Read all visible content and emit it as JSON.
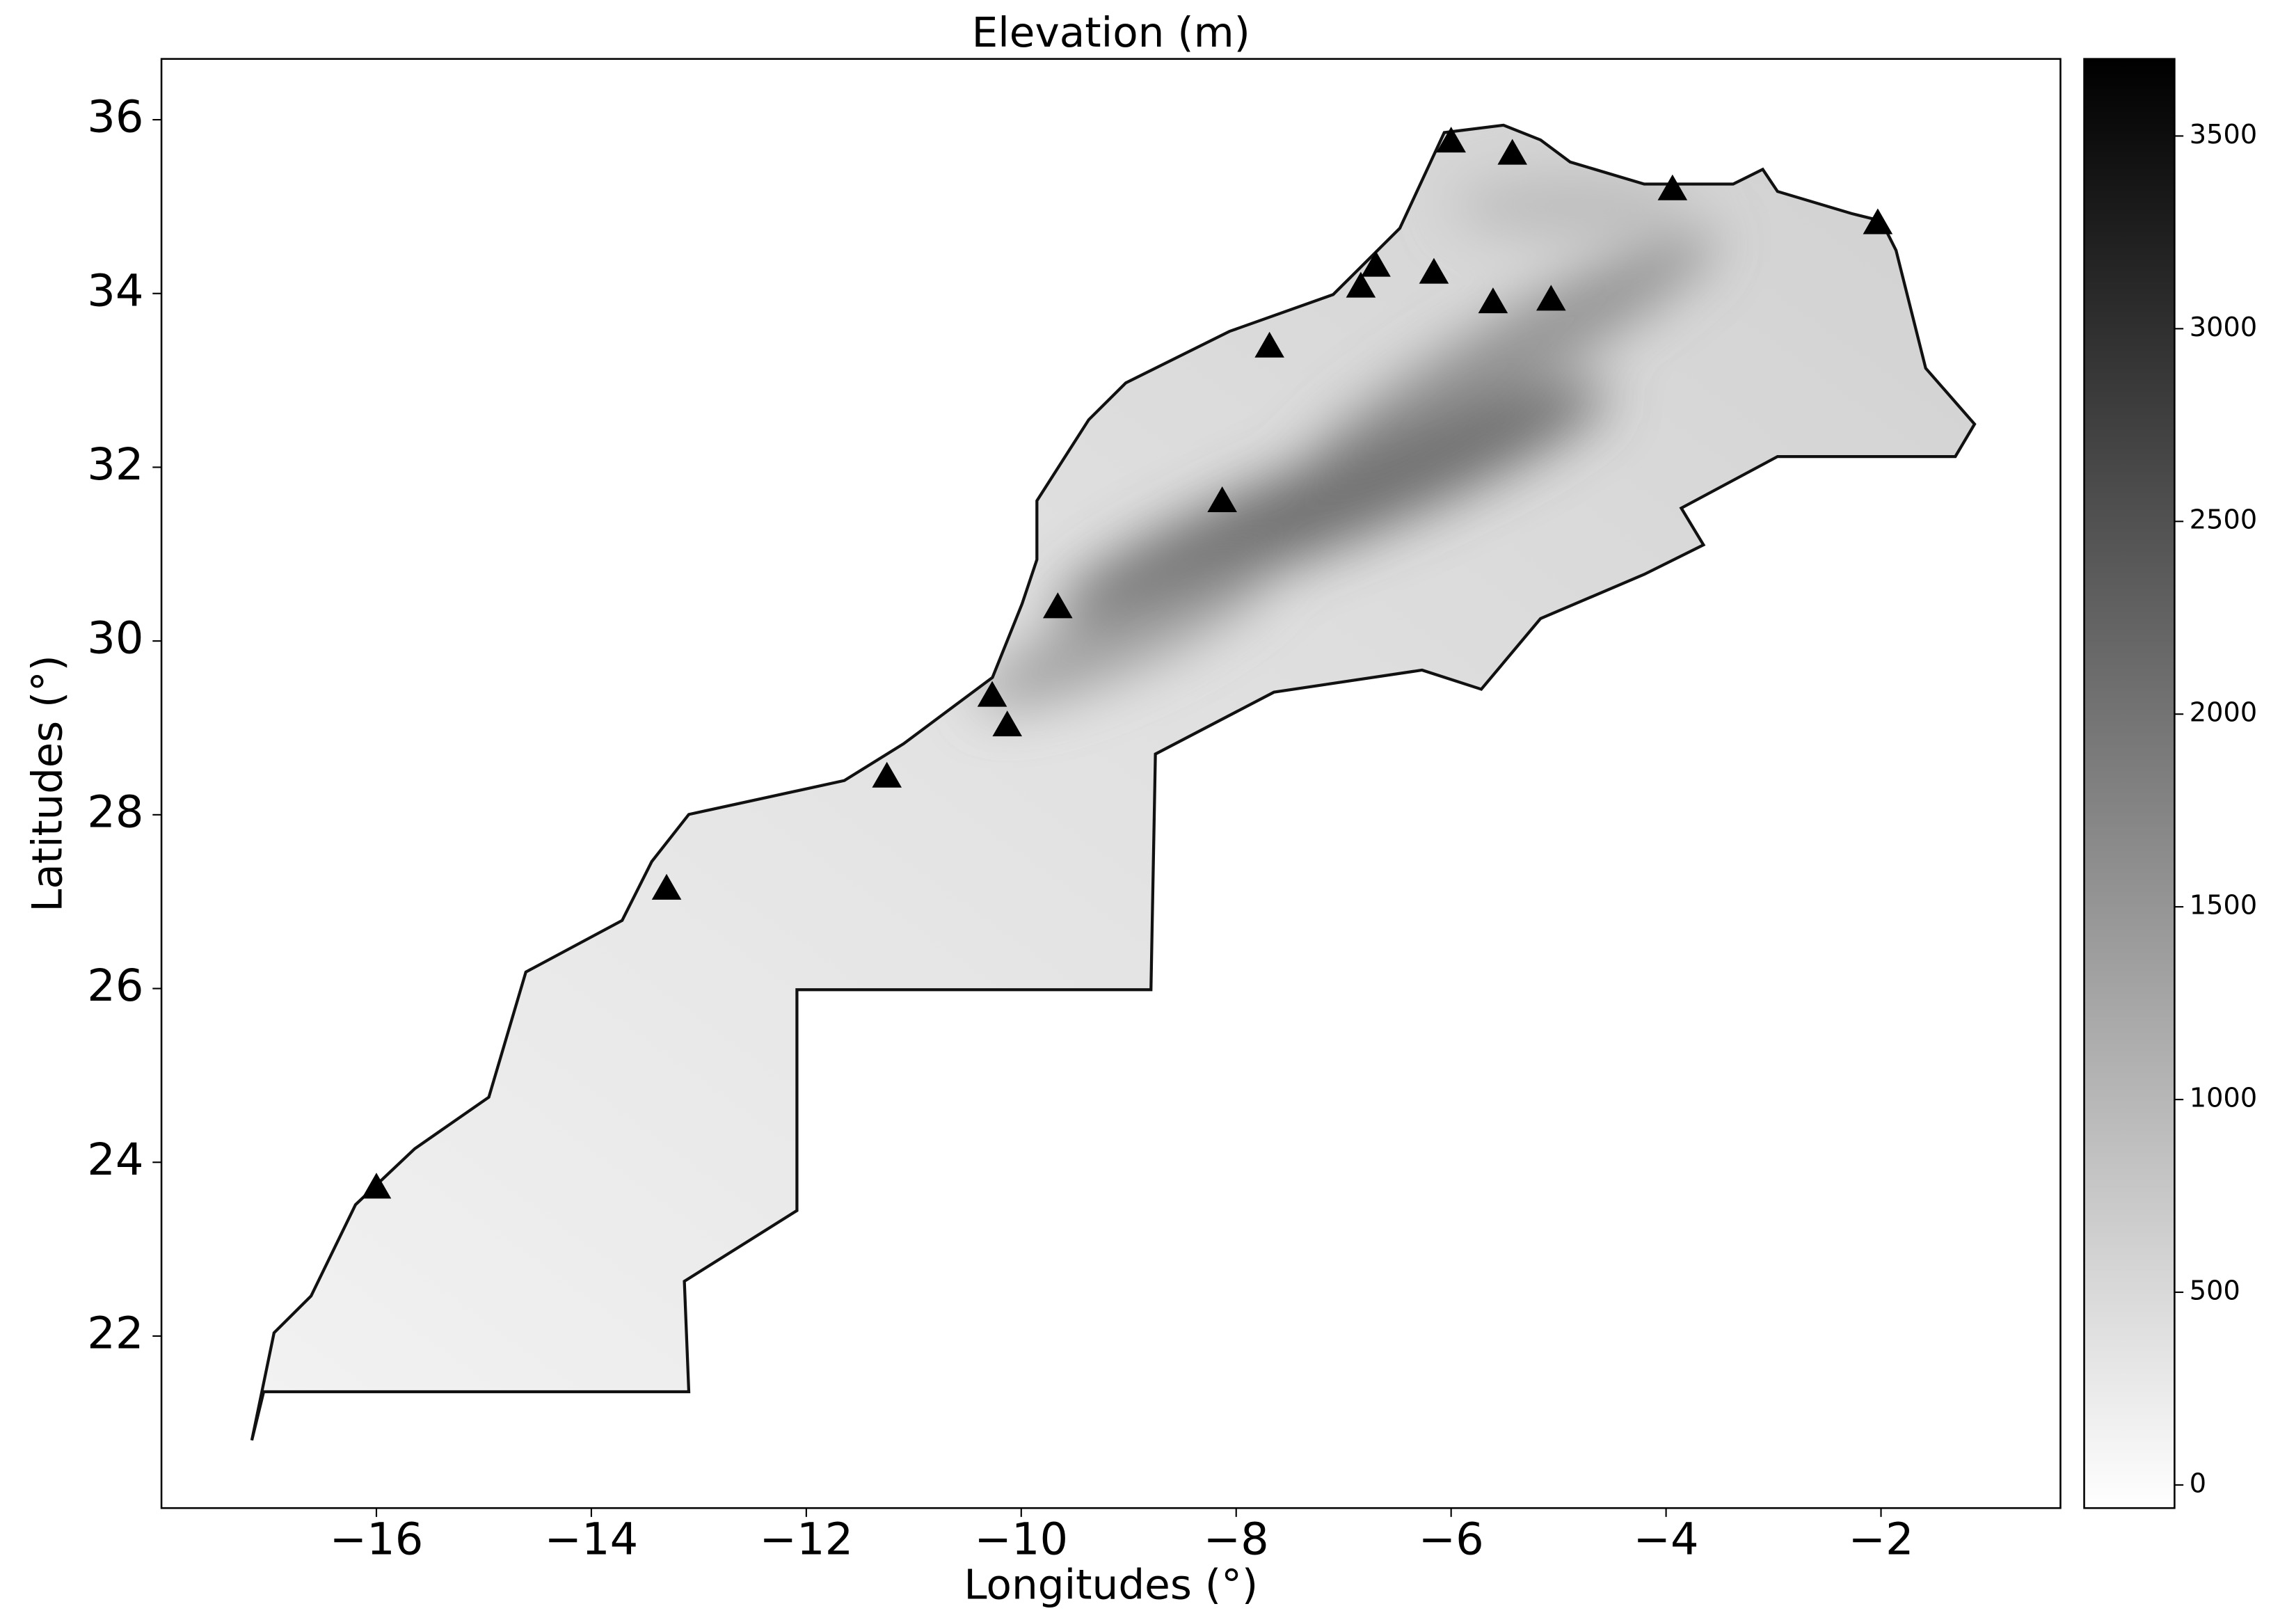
{
  "chart_data": {
    "type": "scatter",
    "title": "Elevation (m)",
    "x_label": "Longitudes (°)",
    "y_label": "Latitudes (°)",
    "xlim": [
      -18,
      -0.33
    ],
    "ylim": [
      20.02,
      36.7
    ],
    "xticks": [
      {
        "value": -16,
        "label": "−16"
      },
      {
        "value": -14,
        "label": "−14"
      },
      {
        "value": -12,
        "label": "−12"
      },
      {
        "value": -10,
        "label": "−10"
      },
      {
        "value": -8,
        "label": "−8"
      },
      {
        "value": -6,
        "label": "−6"
      },
      {
        "value": -4,
        "label": "−4"
      },
      {
        "value": -2,
        "label": "−2"
      }
    ],
    "yticks": [
      22,
      24,
      26,
      28,
      30,
      32,
      34,
      36
    ],
    "marker": "triangle",
    "color": "#000000",
    "x": [
      -6.0,
      -5.43,
      -3.94,
      -2.03,
      -6.7,
      -6.84,
      -6.16,
      -5.61,
      -5.07,
      -7.69,
      -8.13,
      -9.66,
      -10.27,
      -10.13,
      -11.25,
      -13.3,
      -16.0
    ],
    "y": [
      35.75,
      35.61,
      35.2,
      34.81,
      34.32,
      34.08,
      34.24,
      33.9,
      33.93,
      33.39,
      31.61,
      30.39,
      29.37,
      29.03,
      28.44,
      27.15,
      23.71
    ],
    "colorbar": {
      "lim": [
        -60,
        3700
      ],
      "ticks": [
        0,
        500,
        1000,
        1500,
        2000,
        2500,
        3000,
        3500
      ],
      "colors": [
        "#ffffff",
        "#000000"
      ]
    }
  }
}
